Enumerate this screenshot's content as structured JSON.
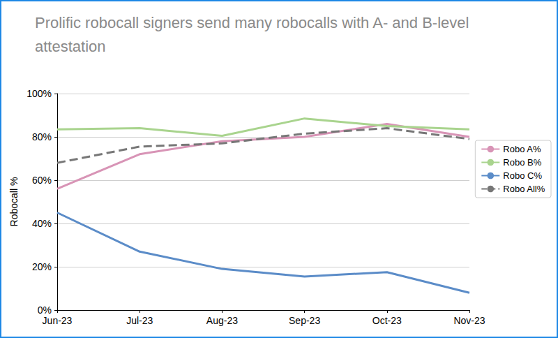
{
  "chart_data": {
    "type": "line",
    "title": "Prolific robocall signers send many robocalls with A- and B-level attestation",
    "y_label": "Robocall %",
    "categories": [
      "Jun-23",
      "Jul-23",
      "Aug-23",
      "Sep-23",
      "Oct-23",
      "Nov-23"
    ],
    "series": [
      {
        "name": "Robo A%",
        "color": "#d894b6",
        "line_style": "solid",
        "values": [
          56,
          72,
          78,
          80,
          86,
          80
        ]
      },
      {
        "name": "Robo B%",
        "color": "#a9d48e",
        "line_style": "solid",
        "values": [
          83.5,
          84,
          80.5,
          88.5,
          85,
          83.5
        ]
      },
      {
        "name": "Robo C%",
        "color": "#5b8cc8",
        "line_style": "solid",
        "values": [
          45,
          27,
          19,
          15.5,
          17.5,
          8
        ]
      },
      {
        "name": "Robo All%",
        "color": "#777777",
        "line_style": "dashed",
        "values": [
          68,
          75.5,
          77,
          81.5,
          84,
          79
        ]
      }
    ],
    "ylim": [
      0,
      100
    ],
    "yticks": [
      {
        "value": 0,
        "label": "0%"
      },
      {
        "value": 20,
        "label": "20%"
      },
      {
        "value": 40,
        "label": "40%"
      },
      {
        "value": 60,
        "label": "60%"
      },
      {
        "value": 80,
        "label": "80%"
      },
      {
        "value": 100,
        "label": "100%"
      }
    ],
    "grid": true,
    "legend": "right",
    "marker": "none"
  }
}
